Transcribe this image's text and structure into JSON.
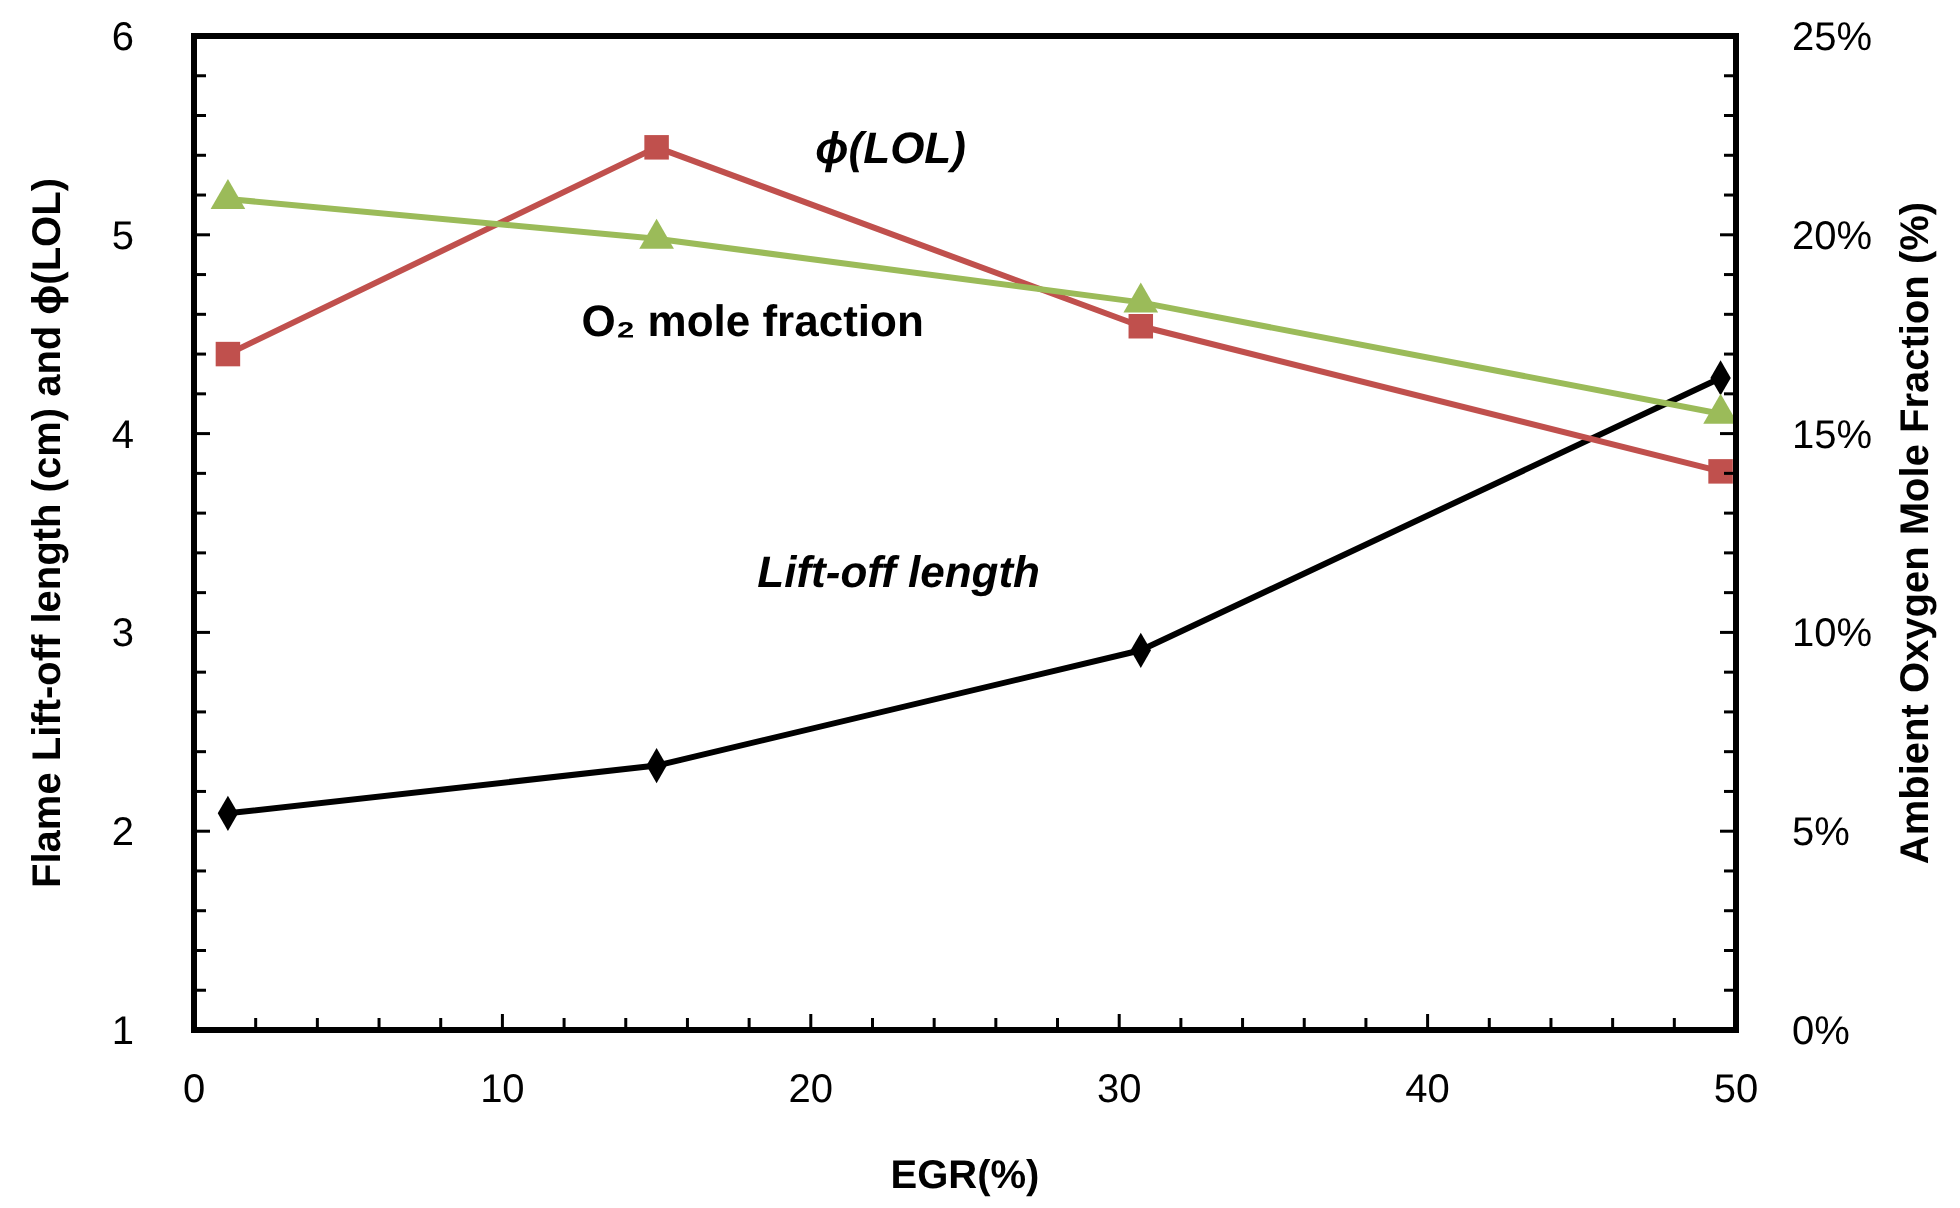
{
  "chart_data": {
    "type": "line",
    "xlabel": "EGR(%)",
    "ylabel": "Flame Lift-off length (cm) and ϕ(LOL)",
    "y2label": "Ambient Oxygen Mole Fraction (%)",
    "x": [
      1.1,
      15,
      30.7,
      49.5
    ],
    "series": [
      {
        "name": "Lift-off length",
        "color": "#000000",
        "marker": "diamond",
        "values": [
          2.09,
          2.33,
          2.91,
          4.28
        ]
      },
      {
        "name": "ϕ(LOL)",
        "color": "#c0504d",
        "marker": "square",
        "values": [
          4.4,
          5.44,
          4.54,
          3.81
        ]
      },
      {
        "name": "O₂ mole fraction",
        "color": "#9bbb59",
        "marker": "triangle",
        "axis": "y2",
        "values": [
          20.9,
          19.9,
          18.3,
          15.5
        ]
      }
    ],
    "xlim": [
      0,
      50
    ],
    "ylim": [
      1,
      6
    ],
    "y2lim": [
      0,
      25
    ],
    "xticks": [
      0,
      {
        "value": 2,
        "label": null
      },
      {
        "value": 4,
        "label": null
      },
      {
        "value": 6,
        "label": null
      },
      {
        "value": 8,
        "label": null
      },
      10,
      {
        "value": 12,
        "label": null
      },
      {
        "value": 14,
        "label": null
      },
      {
        "value": 16,
        "label": null
      },
      {
        "value": 18,
        "label": null
      },
      20,
      {
        "value": 22,
        "label": null
      },
      {
        "value": 24,
        "label": null
      },
      {
        "value": 26,
        "label": null
      },
      {
        "value": 28,
        "label": null
      },
      30,
      {
        "value": 32,
        "label": null
      },
      {
        "value": 34,
        "label": null
      },
      {
        "value": 36,
        "label": null
      },
      {
        "value": 38,
        "label": null
      },
      40,
      {
        "value": 42,
        "label": null
      },
      {
        "value": 44,
        "label": null
      },
      {
        "value": 46,
        "label": null
      },
      {
        "value": 48,
        "label": null
      },
      50
    ],
    "yticks": [
      1,
      {
        "value": 1.2,
        "label": null
      },
      {
        "value": 1.4,
        "label": null
      },
      {
        "value": 1.6,
        "label": null
      },
      {
        "value": 1.8,
        "label": null
      },
      2,
      {
        "value": 2.2,
        "label": null
      },
      {
        "value": 2.4,
        "label": null
      },
      {
        "value": 2.6,
        "label": null
      },
      {
        "value": 2.8,
        "label": null
      },
      3,
      {
        "value": 3.2,
        "label": null
      },
      {
        "value": 3.4,
        "label": null
      },
      {
        "value": 3.6,
        "label": null
      },
      {
        "value": 3.8,
        "label": null
      },
      4,
      {
        "value": 4.2,
        "label": null
      },
      {
        "value": 4.4,
        "label": null
      },
      {
        "value": 4.6,
        "label": null
      },
      {
        "value": 4.8,
        "label": null
      },
      5,
      {
        "value": 5.2,
        "label": null
      },
      {
        "value": 5.4,
        "label": null
      },
      {
        "value": 5.6,
        "label": null
      },
      {
        "value": 5.8,
        "label": null
      },
      6
    ],
    "y2ticks": [
      {
        "value": 0,
        "label": "0%"
      },
      {
        "value": 1,
        "label": null
      },
      {
        "value": 2,
        "label": null
      },
      {
        "value": 3,
        "label": null
      },
      {
        "value": 4,
        "label": null
      },
      {
        "value": 5,
        "label": "5%"
      },
      {
        "value": 6,
        "label": null
      },
      {
        "value": 7,
        "label": null
      },
      {
        "value": 8,
        "label": null
      },
      {
        "value": 9,
        "label": null
      },
      {
        "value": 10,
        "label": "10%"
      },
      {
        "value": 11,
        "label": null
      },
      {
        "value": 12,
        "label": null
      },
      {
        "value": 13,
        "label": null
      },
      {
        "value": 14,
        "label": null
      },
      {
        "value": 15,
        "label": "15%"
      },
      {
        "value": 16,
        "label": null
      },
      {
        "value": 17,
        "label": null
      },
      {
        "value": 18,
        "label": null
      },
      {
        "value": 19,
        "label": null
      },
      {
        "value": 20,
        "label": "20%"
      },
      {
        "value": 21,
        "label": null
      },
      {
        "value": 22,
        "label": null
      },
      {
        "value": 23,
        "label": null
      },
      {
        "value": 24,
        "label": null
      },
      {
        "value": 25,
        "label": "25%"
      }
    ],
    "grid": false
  }
}
